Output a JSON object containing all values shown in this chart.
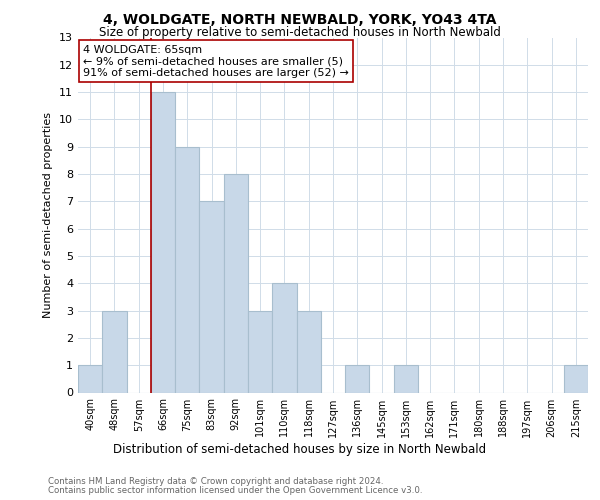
{
  "title1": "4, WOLDGATE, NORTH NEWBALD, YORK, YO43 4TA",
  "title2": "Size of property relative to semi-detached houses in North Newbald",
  "xlabel": "Distribution of semi-detached houses by size in North Newbald",
  "ylabel": "Number of semi-detached properties",
  "bin_labels": [
    "40sqm",
    "48sqm",
    "57sqm",
    "66sqm",
    "75sqm",
    "83sqm",
    "92sqm",
    "101sqm",
    "110sqm",
    "118sqm",
    "127sqm",
    "136sqm",
    "145sqm",
    "153sqm",
    "162sqm",
    "171sqm",
    "180sqm",
    "188sqm",
    "197sqm",
    "206sqm",
    "215sqm"
  ],
  "bin_counts": [
    1,
    3,
    0,
    11,
    9,
    7,
    8,
    3,
    4,
    3,
    0,
    1,
    0,
    1,
    0,
    0,
    0,
    0,
    0,
    0,
    1
  ],
  "bar_color": "#c8d8e8",
  "bar_edge_color": "#a8bece",
  "highlight_line_color": "#aa0000",
  "annotation_title": "4 WOLDGATE: 65sqm",
  "annotation_line1": "← 9% of semi-detached houses are smaller (5)",
  "annotation_line2": "91% of semi-detached houses are larger (52) →",
  "annotation_box_color": "#ffffff",
  "annotation_box_edge": "#aa0000",
  "ylim": [
    0,
    13
  ],
  "yticks": [
    0,
    1,
    2,
    3,
    4,
    5,
    6,
    7,
    8,
    9,
    10,
    11,
    12,
    13
  ],
  "footnote1": "Contains HM Land Registry data © Crown copyright and database right 2024.",
  "footnote2": "Contains public sector information licensed under the Open Government Licence v3.0.",
  "grid_color": "#d0dce8",
  "background_color": "#ffffff"
}
